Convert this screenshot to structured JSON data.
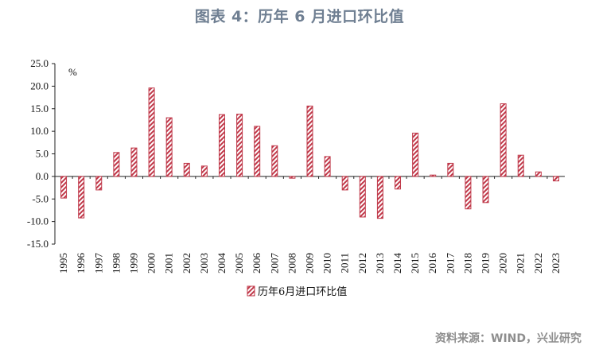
{
  "title": "图表 4：历年 6 月进口环比值",
  "source": "资料来源：WIND，兴业研究",
  "chart_data": {
    "type": "bar",
    "unit_label": "%",
    "categories": [
      "1995",
      "1996",
      "1997",
      "1998",
      "1999",
      "2000",
      "2001",
      "2002",
      "2003",
      "2004",
      "2005",
      "2006",
      "2007",
      "2008",
      "2009",
      "2010",
      "2011",
      "2012",
      "2013",
      "2014",
      "2015",
      "2016",
      "2017",
      "2018",
      "2019",
      "2020",
      "2021",
      "2022",
      "2023"
    ],
    "series": [
      {
        "name": "历年6月进口环比值",
        "values": [
          -4.8,
          -9.2,
          -3.0,
          5.3,
          6.3,
          19.6,
          13.0,
          2.9,
          2.3,
          13.7,
          13.8,
          11.1,
          6.8,
          -0.4,
          15.6,
          4.4,
          -3.0,
          -9.0,
          -9.3,
          -2.8,
          9.6,
          0.3,
          2.9,
          -7.2,
          -5.8,
          16.1,
          4.7,
          1.0,
          -1.0
        ],
        "color": "#c0394a"
      }
    ],
    "ylim": [
      -15,
      25
    ],
    "yticks": [
      "25.0",
      "20.0",
      "15.0",
      "10.0",
      "5.0",
      "0.0",
      "-5.0",
      "-10.0",
      "-15.0"
    ],
    "legend_position": "bottom-center",
    "grid": false
  }
}
